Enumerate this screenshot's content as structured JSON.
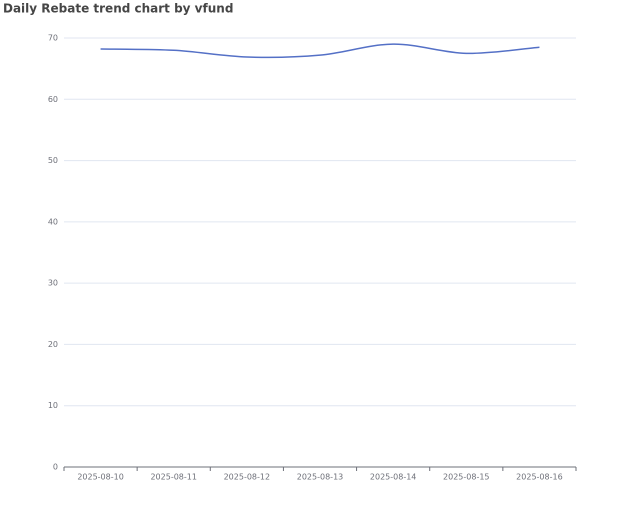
{
  "chart_data": {
    "type": "line",
    "title": "Daily Rebate trend chart by vfund",
    "categories": [
      "2025-08-10",
      "2025-08-11",
      "2025-08-12",
      "2025-08-13",
      "2025-08-14",
      "2025-08-15",
      "2025-08-16"
    ],
    "series": [
      {
        "name": "Daily Rebate",
        "color": "#5470c6",
        "values": [
          68.2,
          68.0,
          66.9,
          67.2,
          69.0,
          67.5,
          68.5
        ]
      }
    ],
    "ylim": [
      0,
      70
    ],
    "yticks": [
      0,
      10,
      20,
      30,
      40,
      50,
      60,
      70
    ],
    "grid": true,
    "smooth": true
  }
}
